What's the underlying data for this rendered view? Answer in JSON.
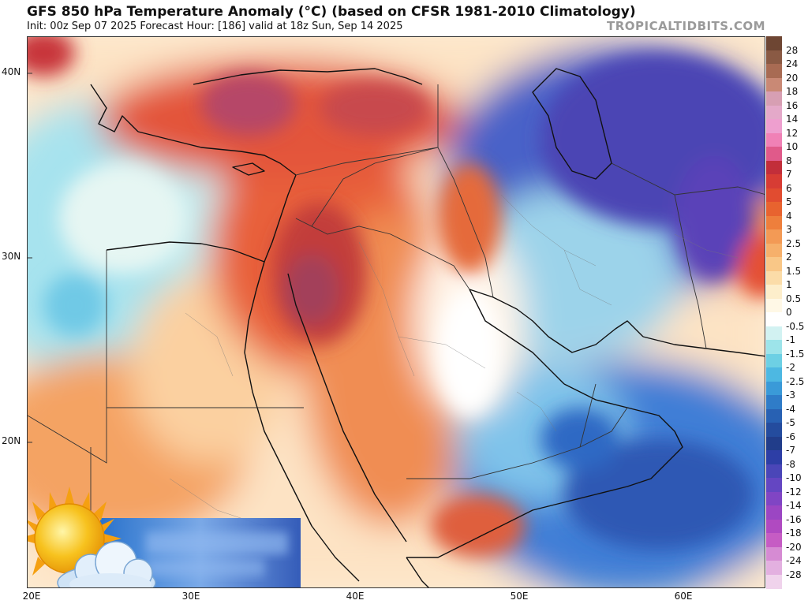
{
  "header": {
    "title": "GFS 850 hPa Temperature Anomaly (°C) (based on CFSR 1981-2010 Climatology)",
    "subtitle": "Init: 00z Sep 07 2025   Forecast Hour: [186]   valid at 18z Sun, Sep 14 2025",
    "watermark": "TROPICALTIDBITS.COM"
  },
  "map": {
    "lat_labels": [
      "40N",
      "30N",
      "20N"
    ],
    "lon_labels": [
      "20E",
      "30E",
      "40E",
      "50E",
      "60E"
    ],
    "lat_range": [
      12.5,
      42
    ],
    "lon_range": [
      20,
      65
    ]
  },
  "colorbar": {
    "labels": [
      "28",
      "24",
      "20",
      "18",
      "16",
      "14",
      "12",
      "10",
      "8",
      "7",
      "6",
      "5",
      "4",
      "3",
      "2.5",
      "2",
      "1.5",
      "1",
      "0.5",
      "0",
      "-0.5",
      "-1",
      "-1.5",
      "-2",
      "-2.5",
      "-3",
      "-4",
      "-5",
      "-6",
      "-7",
      "-8",
      "-10",
      "-12",
      "-14",
      "-16",
      "-18",
      "-20",
      "-24",
      "-28"
    ],
    "colors": [
      "#8a5a44",
      "#a86b53",
      "#c98975",
      "#d79fb3",
      "#e4a9c9",
      "#ee9fcf",
      "#f081b6",
      "#e05a8a",
      "#c22e3a",
      "#d73c34",
      "#e14c30",
      "#e8632f",
      "#ee7f3c",
      "#f39a55",
      "#f6b06b",
      "#f9c787",
      "#fbdca8",
      "#fdeecb",
      "#fff8e6",
      "#ffffff",
      "#d2f2f2",
      "#9de4ea",
      "#6dd0e4",
      "#4db8e2",
      "#3a9ad8",
      "#2f7cc8",
      "#2861b3",
      "#244c9e",
      "#213d8a",
      "#2d3ea6",
      "#4a46b8",
      "#6446c2",
      "#8045c4",
      "#9b46c3",
      "#b04ac1",
      "#c65cc4",
      "#d68bd3",
      "#e3b0e0",
      "#f0d3ec"
    ]
  }
}
